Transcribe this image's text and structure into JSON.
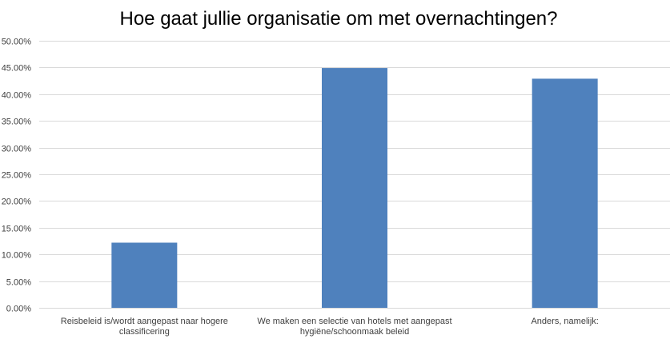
{
  "chart_data": {
    "type": "bar",
    "title": "Hoe gaat jullie organisatie om met overnachtingen?",
    "categories": [
      [
        "Reisbeleid is/wordt aangepast naar hogere",
        "classificering"
      ],
      [
        "We maken een selectie van hotels met aangepast",
        "hygiëne/schoonmaak beleid"
      ],
      [
        "Anders, namelijk:"
      ]
    ],
    "values": [
      12.2,
      44.9,
      42.9
    ],
    "ylim": [
      0,
      50
    ],
    "ytick_step": 5,
    "ytick_labels": [
      "0.00%",
      "5.00%",
      "10.00%",
      "15.00%",
      "20.00%",
      "25.00%",
      "30.00%",
      "35.00%",
      "40.00%",
      "45.00%",
      "50.00%"
    ],
    "xlabel": "",
    "ylabel": "",
    "grid": true,
    "legend": "none",
    "bar_color": "#4f81bd",
    "grid_color": "#d9d9d9"
  }
}
